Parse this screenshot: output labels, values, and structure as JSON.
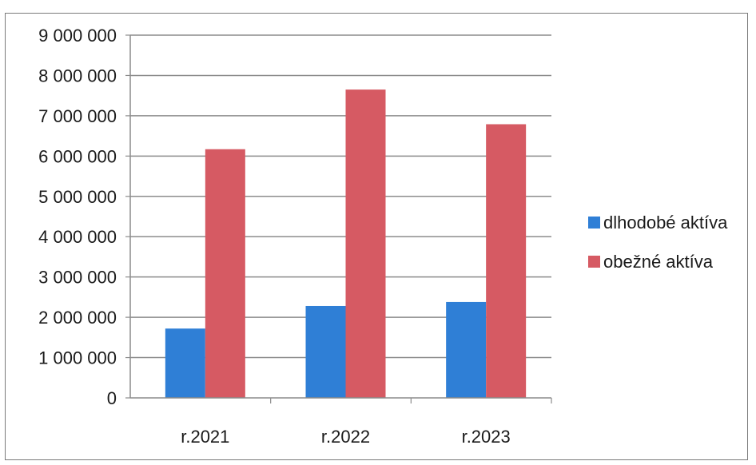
{
  "chart_data": {
    "type": "bar",
    "categories": [
      "r.2021",
      "r.2022",
      "r.2023"
    ],
    "series": [
      {
        "name": "dlhodobé aktíva",
        "color": "#2f7fd6",
        "values": [
          1720000,
          2280000,
          2380000
        ]
      },
      {
        "name": "obežné aktíva",
        "color": "#d65a63",
        "values": [
          6170000,
          7650000,
          6790000
        ]
      }
    ],
    "y_ticks": [
      "0",
      "1 000 000",
      "2 000 000",
      "3 000 000",
      "4 000 000",
      "5 000 000",
      "6 000 000",
      "7 000 000",
      "8 000 000",
      "9 000 000"
    ],
    "ylim": [
      0,
      9000000
    ],
    "grid": true,
    "legend_position": "right"
  }
}
